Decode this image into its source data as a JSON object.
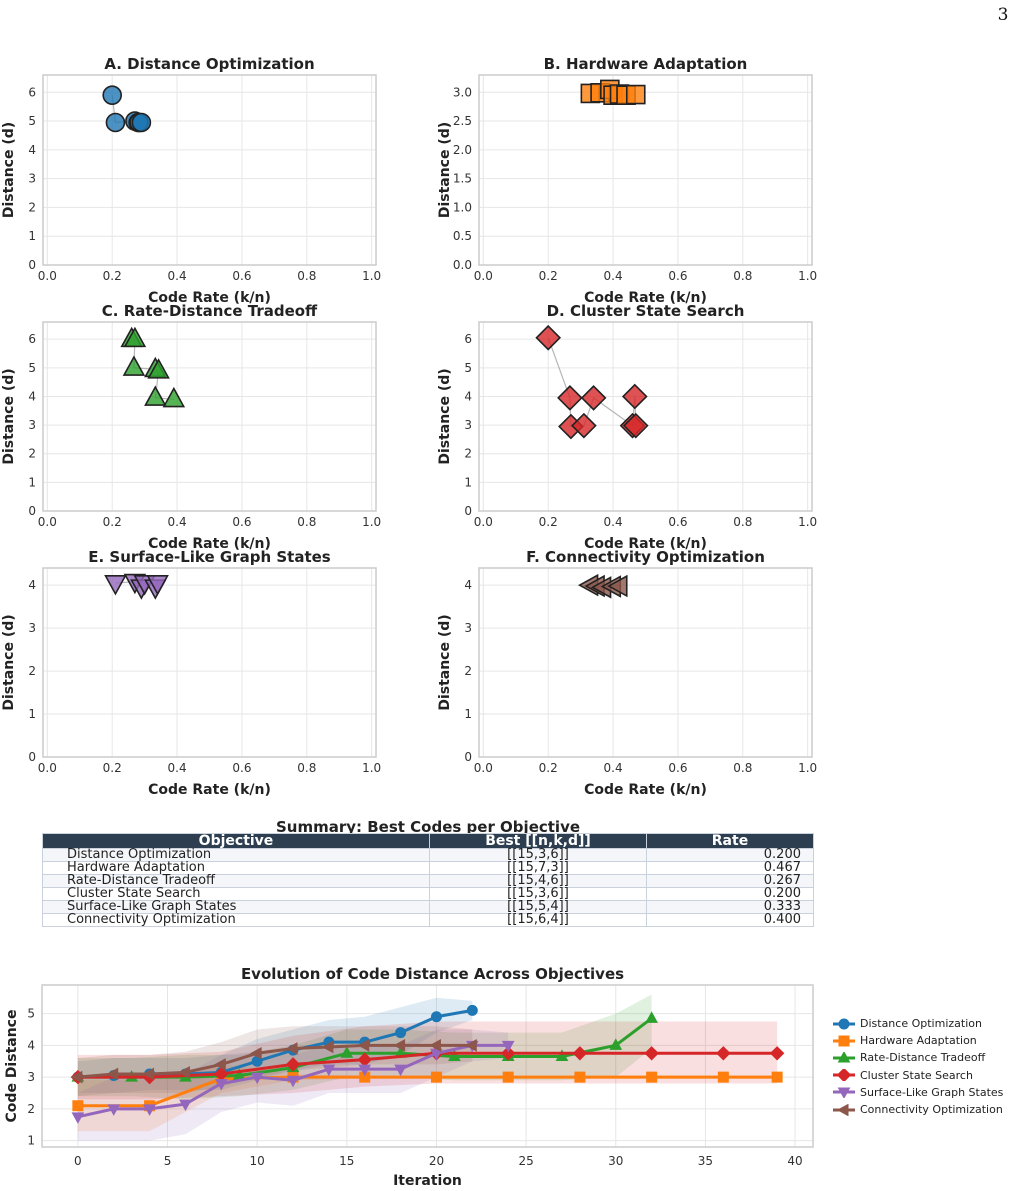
{
  "page_number": "3",
  "chart_data": [
    {
      "type": "scatter",
      "title": "A. Distance Optimization",
      "xlabel": "Code Rate (k/n)",
      "ylabel": "Distance (d)",
      "xlim": [
        0,
        1
      ],
      "ylim": [
        0,
        6.6
      ],
      "yticks": [
        0,
        1,
        2,
        3,
        4,
        5,
        6
      ],
      "xticks": [
        0,
        0.2,
        0.4,
        0.6,
        0.8,
        1.0
      ],
      "color": "#1f77b4",
      "marker": "circle",
      "x": [
        0.2,
        0.21,
        0.27,
        0.28,
        0.283,
        0.29
      ],
      "y": [
        5.9,
        4.95,
        5.0,
        4.95,
        4.95,
        4.95
      ]
    },
    {
      "type": "scatter",
      "title": "B. Hardware Adaptation",
      "xlabel": "Code Rate (k/n)",
      "ylabel": "Distance (d)",
      "xlim": [
        0,
        1
      ],
      "ylim": [
        0,
        3.3
      ],
      "yticks": [
        0,
        0.5,
        1.0,
        1.5,
        2.0,
        2.5,
        3.0
      ],
      "xticks": [
        0,
        0.2,
        0.4,
        0.6,
        0.8,
        1.0
      ],
      "color": "#ff7f0e",
      "marker": "square",
      "x": [
        0.33,
        0.36,
        0.39,
        0.4,
        0.42,
        0.44,
        0.47
      ],
      "y": [
        2.98,
        2.99,
        3.05,
        2.95,
        2.97,
        2.95,
        2.96
      ]
    },
    {
      "type": "scatter",
      "title": "C. Rate-Distance Tradeoff",
      "xlabel": "Code Rate (k/n)",
      "ylabel": "Distance (d)",
      "xlim": [
        0,
        1
      ],
      "ylim": [
        0,
        6.6
      ],
      "yticks": [
        0,
        1,
        2,
        3,
        4,
        5,
        6
      ],
      "xticks": [
        0,
        0.2,
        0.4,
        0.6,
        0.8,
        1.0
      ],
      "color": "#2ca02c",
      "marker": "triangle-up",
      "x": [
        0.26,
        0.27,
        0.267,
        0.333,
        0.343,
        0.333,
        0.39
      ],
      "y": [
        6.0,
        6.0,
        5.0,
        4.95,
        4.9,
        3.95,
        3.9
      ]
    },
    {
      "type": "scatter",
      "title": "D. Cluster State Search",
      "xlabel": "Code Rate (k/n)",
      "ylabel": "Distance (d)",
      "xlim": [
        0,
        1
      ],
      "ylim": [
        0,
        6.6
      ],
      "yticks": [
        0,
        1,
        2,
        3,
        4,
        5,
        6
      ],
      "xticks": [
        0,
        0.2,
        0.4,
        0.6,
        0.8,
        1.0
      ],
      "color": "#d62728",
      "marker": "diamond",
      "x": [
        0.2,
        0.267,
        0.27,
        0.31,
        0.34,
        0.46,
        0.467,
        0.47
      ],
      "y": [
        6.05,
        3.95,
        2.95,
        2.98,
        3.95,
        2.98,
        4.0,
        2.98
      ]
    },
    {
      "type": "scatter",
      "title": "E. Surface-Like Graph States",
      "xlabel": "Code Rate (k/n)",
      "ylabel": "Distance (d)",
      "xlim": [
        0,
        1
      ],
      "ylim": [
        0,
        4.4
      ],
      "yticks": [
        0,
        1,
        2,
        3,
        4
      ],
      "xticks": [
        0,
        0.2,
        0.4,
        0.6,
        0.8,
        1.0
      ],
      "color": "#9467bd",
      "marker": "triangle-down",
      "x": [
        0.21,
        0.27,
        0.29,
        0.3,
        0.333,
        0.34
      ],
      "y": [
        4.05,
        4.08,
        3.95,
        4.05,
        3.95,
        4.05
      ]
    },
    {
      "type": "scatter",
      "title": "F. Connectivity Optimization",
      "xlabel": "Code Rate (k/n)",
      "ylabel": "Distance (d)",
      "xlim": [
        0,
        1
      ],
      "ylim": [
        0,
        4.4
      ],
      "yticks": [
        0,
        1,
        2,
        3,
        4
      ],
      "xticks": [
        0,
        0.2,
        0.4,
        0.6,
        0.8,
        1.0
      ],
      "color": "#8c564b",
      "marker": "triangle-left",
      "x": [
        0.33,
        0.35,
        0.37,
        0.4,
        0.42
      ],
      "y": [
        4.0,
        3.98,
        3.95,
        3.97,
        3.98
      ]
    },
    {
      "type": "table",
      "title": "Summary: Best Codes per Objective",
      "columns": [
        "Objective",
        "Best [[n,k,d]]",
        "Rate"
      ],
      "rows": [
        [
          "Distance Optimization",
          "[[15,3,6]]",
          "0.200"
        ],
        [
          "Hardware Adaptation",
          "[[15,7,3]]",
          "0.467"
        ],
        [
          "Rate-Distance Tradeoff",
          "[[15,4,6]]",
          "0.267"
        ],
        [
          "Cluster State Search",
          "[[15,3,6]]",
          "0.200"
        ],
        [
          "Surface-Like Graph States",
          "[[15,5,4]]",
          "0.333"
        ],
        [
          "Connectivity Optimization",
          "[[15,6,4]]",
          "0.400"
        ]
      ]
    },
    {
      "type": "line",
      "title": "Evolution of Code Distance Across Objectives",
      "xlabel": "Iteration",
      "ylabel": "Code Distance",
      "xlim": [
        -2,
        41
      ],
      "ylim": [
        0.8,
        5.9
      ],
      "xticks": [
        0,
        5,
        10,
        15,
        20,
        25,
        30,
        35,
        40
      ],
      "yticks": [
        1,
        2,
        3,
        4,
        5
      ],
      "legend_position": "outside-right",
      "series": [
        {
          "name": "Distance Optimization",
          "color": "#1f77b4",
          "marker": "circle",
          "x": [
            0,
            2,
            4,
            6,
            8,
            10,
            12,
            14,
            16,
            18,
            20,
            22
          ],
          "y": [
            3.0,
            3.05,
            3.1,
            3.1,
            3.15,
            3.5,
            3.85,
            4.1,
            4.1,
            4.4,
            4.9,
            5.1
          ],
          "lo": [
            2.5,
            2.5,
            2.6,
            2.6,
            2.6,
            2.9,
            3.2,
            3.4,
            3.4,
            3.7,
            4.4,
            4.8
          ],
          "hi": [
            3.5,
            3.6,
            3.6,
            3.6,
            3.7,
            4.2,
            4.5,
            4.8,
            4.9,
            5.2,
            5.5,
            5.4
          ]
        },
        {
          "name": "Hardware Adaptation",
          "color": "#ff7f0e",
          "marker": "square",
          "x": [
            0,
            4,
            8,
            12,
            16,
            20,
            24,
            28,
            32,
            36,
            39
          ],
          "y": [
            2.1,
            2.1,
            2.95,
            3.0,
            3.0,
            3.0,
            3.0,
            3.0,
            3.0,
            3.0,
            3.0
          ],
          "lo": [
            1.3,
            1.3,
            2.5,
            2.9,
            2.95,
            2.95,
            2.95,
            2.95,
            2.95,
            2.95,
            2.95
          ],
          "hi": [
            2.9,
            2.9,
            3.4,
            3.1,
            3.05,
            3.05,
            3.05,
            3.05,
            3.05,
            3.05,
            3.05
          ]
        },
        {
          "name": "Rate-Distance Tradeoff",
          "color": "#2ca02c",
          "marker": "triangle-up",
          "x": [
            0,
            3,
            6,
            9,
            12,
            15,
            18,
            21,
            24,
            27,
            30,
            32
          ],
          "y": [
            3.0,
            3.0,
            3.0,
            3.05,
            3.3,
            3.75,
            3.75,
            3.65,
            3.65,
            3.65,
            4.0,
            4.85
          ],
          "lo": [
            2.4,
            2.4,
            2.3,
            2.4,
            2.6,
            3.0,
            3.0,
            2.9,
            2.9,
            2.9,
            3.0,
            3.9
          ],
          "hi": [
            3.6,
            3.6,
            3.7,
            3.7,
            4.0,
            4.5,
            4.5,
            4.4,
            4.4,
            4.4,
            5.0,
            5.6
          ]
        },
        {
          "name": "Cluster State Search",
          "color": "#d62728",
          "marker": "diamond",
          "x": [
            0,
            4,
            8,
            12,
            16,
            20,
            24,
            28,
            32,
            36,
            39
          ],
          "y": [
            3.0,
            3.0,
            3.1,
            3.4,
            3.55,
            3.75,
            3.75,
            3.75,
            3.75,
            3.75,
            3.75
          ],
          "lo": [
            2.3,
            2.3,
            2.4,
            2.5,
            2.7,
            2.8,
            2.8,
            2.8,
            2.8,
            2.8,
            2.8
          ],
          "hi": [
            3.7,
            3.7,
            3.8,
            4.3,
            4.6,
            4.75,
            4.75,
            4.75,
            4.75,
            4.75,
            4.75
          ]
        },
        {
          "name": "Surface-Like Graph States",
          "color": "#9467bd",
          "marker": "triangle-down",
          "x": [
            0,
            2,
            4,
            6,
            8,
            10,
            12,
            14,
            16,
            18,
            20,
            22,
            24
          ],
          "y": [
            1.75,
            2.0,
            2.0,
            2.15,
            2.8,
            3.0,
            2.9,
            3.25,
            3.25,
            3.25,
            3.75,
            4.0,
            4.0
          ],
          "lo": [
            1.0,
            1.0,
            1.0,
            1.2,
            1.9,
            2.2,
            2.1,
            2.5,
            2.5,
            2.5,
            3.0,
            3.5,
            3.6
          ],
          "hi": [
            2.5,
            3.0,
            3.0,
            3.1,
            3.7,
            3.8,
            3.7,
            4.0,
            4.0,
            4.0,
            4.5,
            4.5,
            4.4
          ]
        },
        {
          "name": "Connectivity Optimization",
          "color": "#8c564b",
          "marker": "triangle-left",
          "x": [
            0,
            2,
            4,
            6,
            8,
            10,
            12,
            14,
            16,
            18,
            20,
            22
          ],
          "y": [
            3.0,
            3.1,
            3.1,
            3.15,
            3.4,
            3.75,
            3.9,
            3.95,
            4.0,
            4.0,
            4.0,
            4.0
          ],
          "lo": [
            2.4,
            2.5,
            2.5,
            2.5,
            2.7,
            3.0,
            3.2,
            3.3,
            3.4,
            3.4,
            3.4,
            3.5
          ],
          "hi": [
            3.6,
            3.7,
            3.7,
            3.8,
            4.1,
            4.5,
            4.6,
            4.6,
            4.6,
            4.6,
            4.6,
            4.5
          ]
        }
      ]
    }
  ]
}
